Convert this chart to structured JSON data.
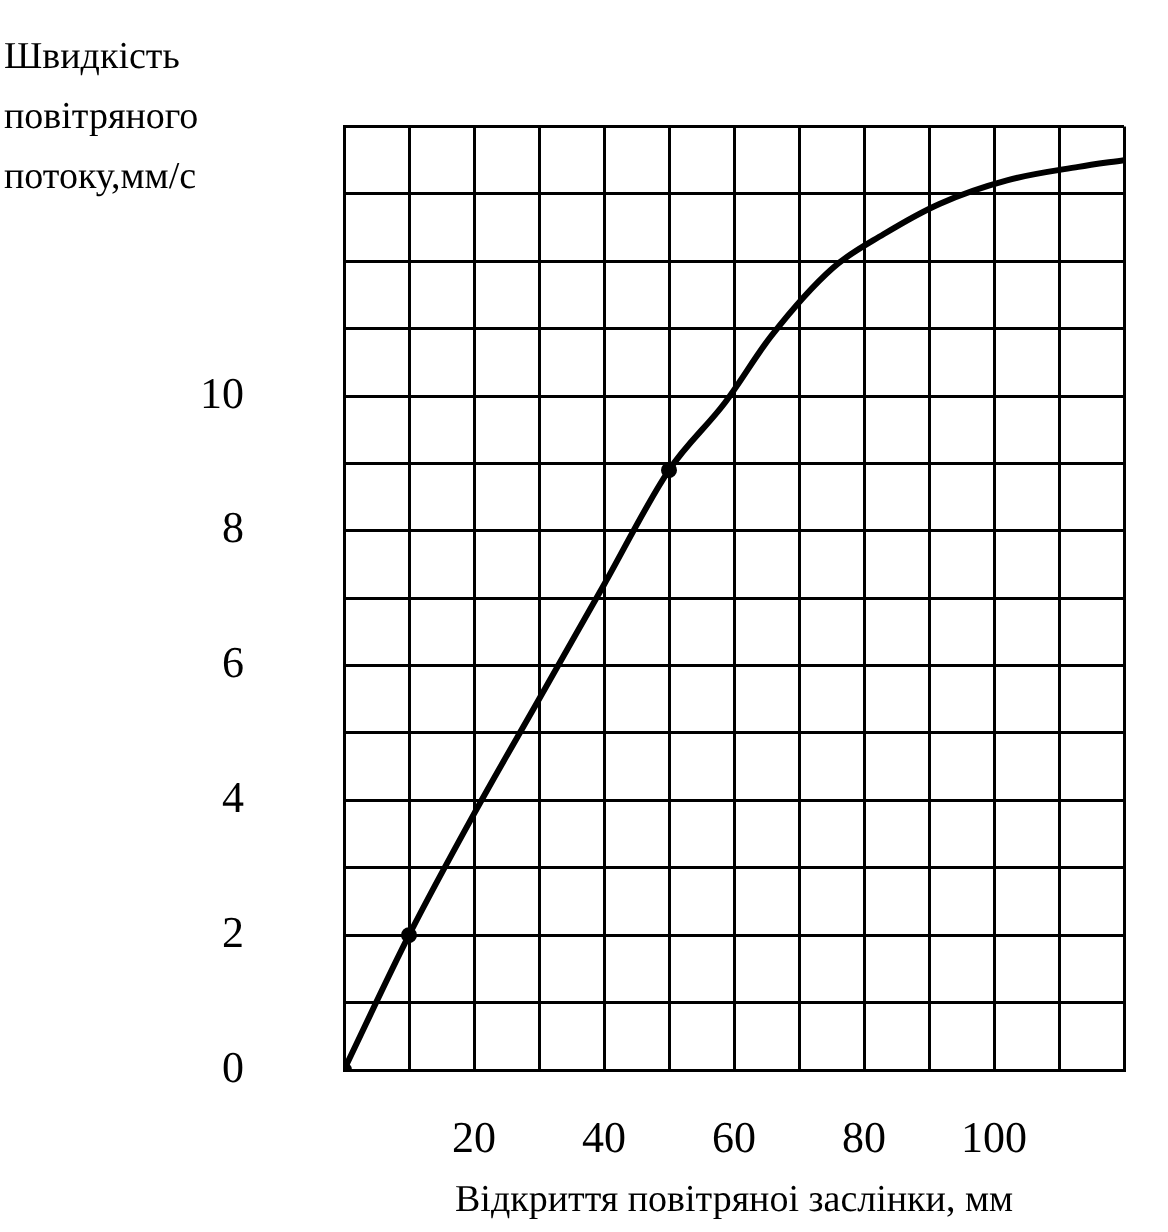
{
  "chart_data": {
    "type": "line",
    "xlabel": "Відкриття повітряноі заслінки, мм",
    "ylabel": "Швидкість повітряного потоку,мм/с",
    "xlim": [
      0,
      120
    ],
    "ylim": [
      0,
      14
    ],
    "xticks": [
      {
        "value": 0,
        "label": null
      },
      {
        "value": 10,
        "label": null
      },
      20,
      {
        "value": 30,
        "label": null
      },
      40,
      {
        "value": 50,
        "label": null
      },
      60,
      {
        "value": 70,
        "label": null
      },
      80,
      {
        "value": 90,
        "label": null
      },
      100,
      {
        "value": 110,
        "label": null
      },
      {
        "value": 120,
        "label": null
      }
    ],
    "yticks": [
      0,
      {
        "value": 1,
        "label": null
      },
      2,
      {
        "value": 3,
        "label": null
      },
      4,
      {
        "value": 5,
        "label": null
      },
      6,
      {
        "value": 7,
        "label": null
      },
      8,
      {
        "value": 9,
        "label": null
      },
      10,
      {
        "value": 11,
        "label": null
      },
      {
        "value": 12,
        "label": null
      },
      {
        "value": 13,
        "label": null
      },
      {
        "value": 14,
        "label": null
      }
    ],
    "grid": true,
    "legend": false,
    "line_style": "solid",
    "marker": "none",
    "series": [
      {
        "color": "#000000",
        "x": [
          0,
          10,
          20,
          30,
          40,
          50,
          58.6,
          65.8,
          75.2,
          83,
          91.6,
          102,
          113,
          120
        ],
        "values": [
          0,
          2,
          3.8,
          5.5,
          7.2,
          8.9,
          9.9,
          10.9,
          11.9,
          12.4,
          12.85,
          13.2,
          13.4,
          13.5
        ]
      },
      {
        "type": "scatter",
        "marker": "circle",
        "color": "#000000",
        "x": [
          0,
          10,
          50
        ],
        "values": [
          0,
          2,
          8.9
        ]
      }
    ]
  }
}
